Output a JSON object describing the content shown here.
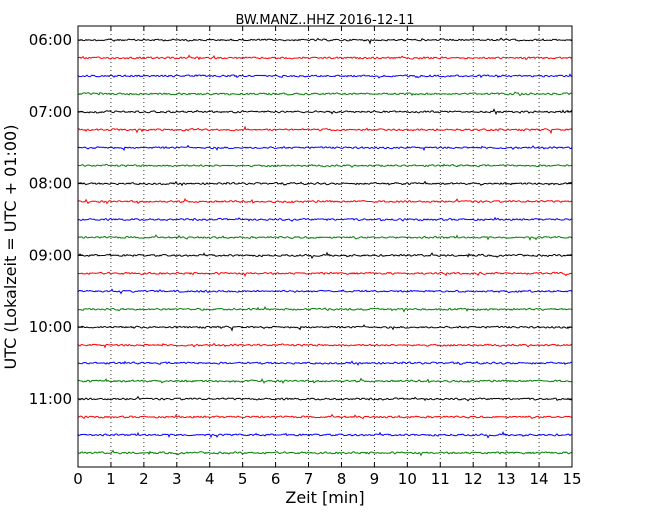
{
  "chart_data": {
    "type": "line",
    "title": "BW.MANZ..HHZ 2016-12-11",
    "xlabel": "Zeit  [min]",
    "ylabel": "UTC (Lokalzeit = UTC + 01:00)",
    "xlim": [
      0,
      15
    ],
    "x_ticks": [
      "0",
      "1",
      "2",
      "3",
      "4",
      "5",
      "6",
      "7",
      "8",
      "9",
      "10",
      "11",
      "12",
      "13",
      "14",
      "15"
    ],
    "y_ticks": [
      "06:00",
      "07:00",
      "08:00",
      "09:00",
      "10:00",
      "11:00"
    ],
    "grid": "vertical dotted lines at each minute",
    "trace_minutes": 15,
    "series_colors": [
      "#000000",
      "#ff0000",
      "#0000ff",
      "#008000"
    ],
    "traces": [
      {
        "start": "06:00",
        "color": "#000000"
      },
      {
        "start": "06:15",
        "color": "#ff0000"
      },
      {
        "start": "06:30",
        "color": "#0000ff"
      },
      {
        "start": "06:45",
        "color": "#008000"
      },
      {
        "start": "07:00",
        "color": "#000000"
      },
      {
        "start": "07:15",
        "color": "#ff0000"
      },
      {
        "start": "07:30",
        "color": "#0000ff"
      },
      {
        "start": "07:45",
        "color": "#008000"
      },
      {
        "start": "08:00",
        "color": "#000000"
      },
      {
        "start": "08:15",
        "color": "#ff0000"
      },
      {
        "start": "08:30",
        "color": "#0000ff"
      },
      {
        "start": "08:45",
        "color": "#008000"
      },
      {
        "start": "09:00",
        "color": "#000000"
      },
      {
        "start": "09:15",
        "color": "#ff0000"
      },
      {
        "start": "09:30",
        "color": "#0000ff"
      },
      {
        "start": "09:45",
        "color": "#008000"
      },
      {
        "start": "10:00",
        "color": "#000000"
      },
      {
        "start": "10:15",
        "color": "#ff0000"
      },
      {
        "start": "10:30",
        "color": "#0000ff"
      },
      {
        "start": "10:45",
        "color": "#008000"
      },
      {
        "start": "11:00",
        "color": "#000000"
      },
      {
        "start": "11:15",
        "color": "#ff0000"
      },
      {
        "start": "11:30",
        "color": "#0000ff"
      },
      {
        "start": "11:45",
        "color": "#008000"
      }
    ]
  }
}
